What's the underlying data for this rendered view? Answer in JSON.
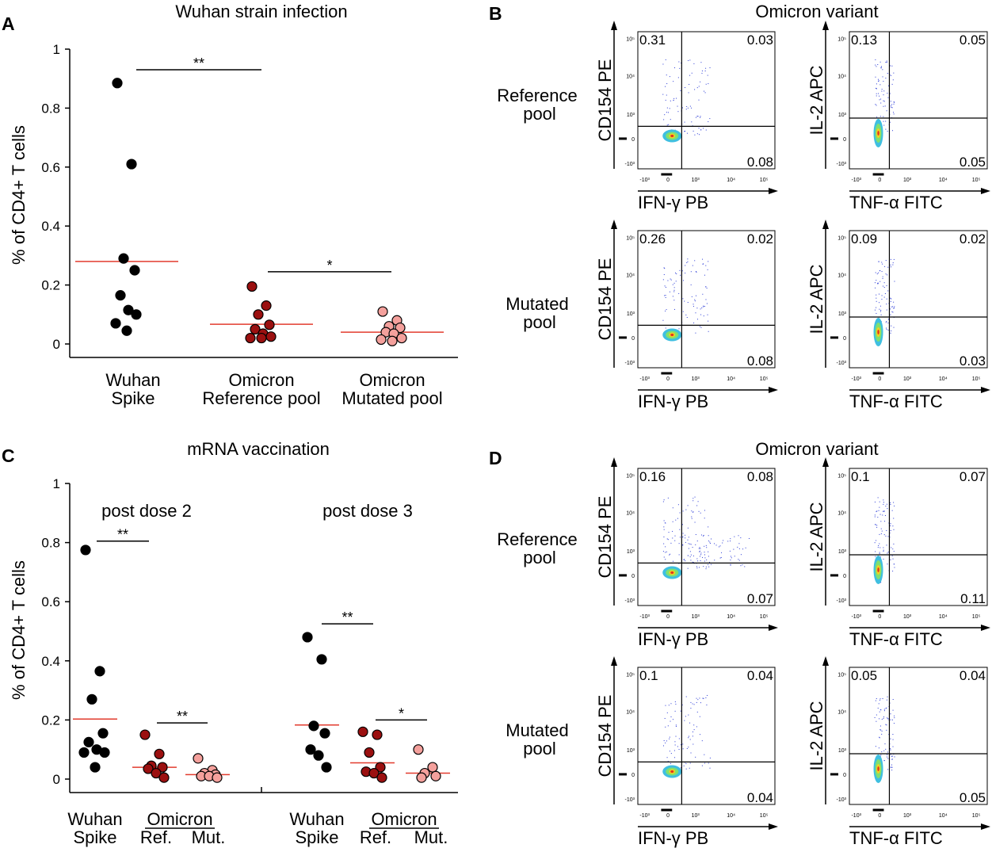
{
  "panels": {
    "A": {
      "letter": "A",
      "title": "Wuhan strain infection",
      "ylabel": "% of CD4+ T cells",
      "ylim": [
        0,
        1
      ],
      "yticks": [
        "0",
        "0.2",
        "0.4",
        "0.6",
        "0.8",
        "1"
      ],
      "groups": [
        {
          "line1": "Wuhan",
          "line2": "Spike"
        },
        {
          "line1": "Omicron",
          "line2": "Reference pool"
        },
        {
          "line1": "Omicron",
          "line2": "Mutated pool"
        }
      ],
      "sig": [
        {
          "label": "**",
          "from": 0,
          "to": 1,
          "y": 0.93
        },
        {
          "label": "*",
          "from": 1,
          "to": 2,
          "y": 0.245
        }
      ]
    },
    "B": {
      "letter": "B",
      "title": "Omicron variant"
    },
    "C": {
      "letter": "C",
      "title": "mRNA vaccination",
      "ylabel": "% of CD4+ T cells",
      "ylim": [
        0,
        1
      ],
      "yticks": [
        "0",
        "0.2",
        "0.4",
        "0.6",
        "0.8",
        "1"
      ],
      "subtitles": [
        "post dose 2",
        "post dose 3"
      ],
      "xlabels": {
        "wuhan1": "Wuhan",
        "wuhan2": "Spike",
        "omicron": "Omicron",
        "ref": "Ref.",
        "mut": "Mut."
      },
      "sig": [
        {
          "label": "**",
          "block": 0,
          "from": 0,
          "to": 1,
          "y": 0.805
        },
        {
          "label": "**",
          "block": 0,
          "from": 1,
          "to": 2,
          "y": 0.19
        },
        {
          "label": "**",
          "block": 1,
          "from": 0,
          "to": 1,
          "y": 0.525
        },
        {
          "label": "*",
          "block": 1,
          "from": 1,
          "to": 2,
          "y": 0.2
        }
      ]
    },
    "D": {
      "letter": "D",
      "title": "Omicron variant"
    }
  },
  "flow": {
    "row_labels": [
      {
        "line1": "Reference",
        "line2": "pool"
      },
      {
        "line1": "Mutated",
        "line2": "pool"
      },
      {
        "line1": "Reference",
        "line2": "pool"
      },
      {
        "line1": "Mutated",
        "line2": "pool"
      }
    ],
    "plots": [
      {
        "ylabel": "CD154 PE",
        "xlabel": "IFN-γ PB",
        "ul": "0.31",
        "ur": "0.03",
        "lr": "0.08"
      },
      {
        "ylabel": "IL-2 APC",
        "xlabel": "TNF-α FITC",
        "ul": "0.13",
        "ur": "0.05",
        "lr": "0.05"
      },
      {
        "ylabel": "CD154 PE",
        "xlabel": "IFN-γ PB",
        "ul": "0.26",
        "ur": "0.02",
        "lr": "0.08"
      },
      {
        "ylabel": "IL-2 APC",
        "xlabel": "TNF-α FITC",
        "ul": "0.09",
        "ur": "0.02",
        "lr": "0.03"
      },
      {
        "ylabel": "CD154 PE",
        "xlabel": "IFN-γ PB",
        "ul": "0.16",
        "ur": "0.08",
        "lr": "0.07"
      },
      {
        "ylabel": "IL-2 APC",
        "xlabel": "TNF-α FITC",
        "ul": "0.1",
        "ur": "0.07",
        "lr": "0.11"
      },
      {
        "ylabel": "CD154 PE",
        "xlabel": "IFN-γ PB",
        "ul": "0.1",
        "ur": "0.04",
        "lr": "0.04"
      },
      {
        "ylabel": "IL-2 APC",
        "xlabel": "TNF-α FITC",
        "ul": "0.05",
        "ur": "0.04",
        "lr": "0.05"
      }
    ],
    "tick_labels_x": [
      "-10³",
      "0",
      "10³",
      "10⁴",
      "10⁵"
    ],
    "tick_labels_y": [
      "10⁵",
      "10⁴",
      "10³",
      "0",
      "-10³"
    ]
  },
  "colors": {
    "wuhan": "#000000",
    "omicron_ref": "#9b1010",
    "omicron_mut": "#f4a09c",
    "median": "#e23b2e",
    "dots": "#2b3bd6"
  },
  "chart_data": [
    {
      "type": "scatter",
      "title": "Wuhan strain infection",
      "ylabel": "% of CD4+ T cells",
      "ylim": [
        0,
        1
      ],
      "categories": [
        "Wuhan Spike",
        "Omicron Reference pool",
        "Omicron Mutated pool"
      ],
      "series": [
        {
          "name": "Wuhan Spike",
          "values": [
            0.885,
            0.61,
            0.29,
            0.25,
            0.165,
            0.115,
            0.1,
            0.07,
            0.045
          ],
          "median": 0.28
        },
        {
          "name": "Omicron Reference pool",
          "values": [
            0.195,
            0.13,
            0.1,
            0.065,
            0.05,
            0.035,
            0.025,
            0.02,
            0.02
          ],
          "median": 0.067
        },
        {
          "name": "Omicron Mutated pool",
          "values": [
            0.11,
            0.08,
            0.06,
            0.055,
            0.04,
            0.035,
            0.02,
            0.015,
            0.01
          ],
          "median": 0.04
        }
      ]
    },
    {
      "type": "scatter",
      "title": "mRNA vaccination",
      "ylabel": "% of CD4+ T cells",
      "ylim": [
        0,
        1
      ],
      "blocks": [
        {
          "subtitle": "post dose 2",
          "series": [
            {
              "name": "Wuhan Spike",
              "values": [
                0.775,
                0.365,
                0.27,
                0.155,
                0.125,
                0.1,
                0.09,
                0.09,
                0.04
              ],
              "median": 0.203
            },
            {
              "name": "Omicron Ref.",
              "values": [
                0.15,
                0.085,
                0.045,
                0.04,
                0.035,
                0.02,
                0.005
              ],
              "median": 0.04
            },
            {
              "name": "Omicron Mut.",
              "values": [
                0.07,
                0.03,
                0.02,
                0.015,
                0.01,
                0.01,
                0.005
              ],
              "median": 0.015
            }
          ]
        },
        {
          "subtitle": "post dose 3",
          "series": [
            {
              "name": "Wuhan Spike",
              "values": [
                0.48,
                0.405,
                0.18,
                0.155,
                0.1,
                0.08,
                0.04
              ],
              "median": 0.183
            },
            {
              "name": "Omicron Ref.",
              "values": [
                0.16,
                0.15,
                0.09,
                0.04,
                0.025,
                0.02,
                0.005
              ],
              "median": 0.055
            },
            {
              "name": "Omicron Mut.",
              "values": [
                0.1,
                0.04,
                0.02,
                0.01,
                0.005
              ],
              "median": 0.02
            }
          ]
        }
      ]
    }
  ]
}
